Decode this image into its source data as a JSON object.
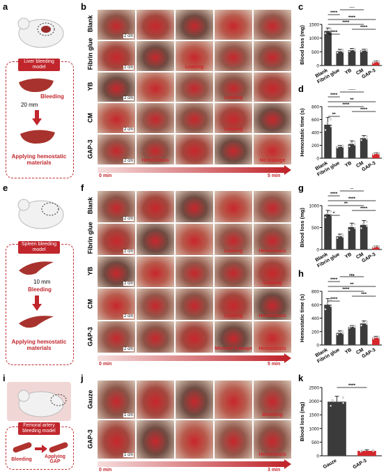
{
  "panels": {
    "a": "a",
    "b": "b",
    "c": "c",
    "d": "d",
    "e": "e",
    "f": "f",
    "g": "g",
    "h": "h",
    "i": "i",
    "j": "j",
    "k": "k"
  },
  "schematics": {
    "a": {
      "title": "Liver bleeding model",
      "scale": "20 mm",
      "bleeding": "Bleeding",
      "bottom": "Applying hemostatic materials"
    },
    "e": {
      "title": "Spleen bleeding model",
      "scale": "10 mm",
      "bleeding": "Bleeding",
      "bottom": "Applying hemostatic materials"
    },
    "i": {
      "title": "Femoral artery bleeding model",
      "bleeding": "Bleeding",
      "applying": "Applying GAP"
    }
  },
  "grid_b": {
    "rows": [
      "Blank",
      "Fibrin glue",
      "YB",
      "CM",
      "GAP-3"
    ],
    "scale": "2 cm",
    "annotations": {
      "1_2": "Leaking",
      "2_3": "Leaking",
      "3_3": "Leaking",
      "4_1": "Hemostasis",
      "4_4": "No leakage"
    },
    "time_start": "0 min",
    "time_end": "5 min"
  },
  "grid_f": {
    "rows": [
      "Blank",
      "Fibrin glue",
      "YB",
      "CM",
      "GAP-3"
    ],
    "scale": "2 cm",
    "annotations": {
      "1_3": "Leaking",
      "1_4": "Hemostasis",
      "2_4": "Leaking",
      "3_3": "Leaking",
      "3_4": "Hemostasis",
      "4_3": "Minimal leakage",
      "4_4": "Hemostasis"
    },
    "time_start": "0 min",
    "time_end": "5 min"
  },
  "grid_j": {
    "rows": [
      "Gauze",
      "GAP-3"
    ],
    "scale": "1 cm",
    "annotations": {
      "0_4": "Bleeding",
      "1_4": "Hemostasis"
    },
    "time_start": "0 min",
    "time_end": "3 min"
  },
  "colors": {
    "dark_bar": "#3b3b3b",
    "red_bar": "#d5262c",
    "accent": "#c0262c"
  },
  "chart_data": [
    {
      "id": "c",
      "type": "bar",
      "ylabel": "Blood loss (mg)",
      "ylim": [
        0,
        1500
      ],
      "yticks": [
        0,
        500,
        1000,
        1500
      ],
      "categories": [
        "Blank",
        "Fibrin glue",
        "YB",
        "CM",
        "GAP-3"
      ],
      "values": [
        1260,
        520,
        560,
        550,
        130
      ],
      "errors": [
        110,
        70,
        60,
        50,
        40
      ],
      "significance": [
        "****",
        "****",
        "****",
        "****",
        "****",
        "***"
      ]
    },
    {
      "id": "d",
      "type": "bar",
      "ylabel": "Hemostatic time (s)",
      "ylim": [
        0,
        800
      ],
      "yticks": [
        0,
        200,
        400,
        600,
        800
      ],
      "categories": [
        "Blank",
        "Fibrin glue",
        "YB",
        "CM",
        "GAP-3"
      ],
      "values": [
        520,
        180,
        220,
        310,
        70
      ],
      "errors": [
        110,
        20,
        50,
        40,
        15
      ],
      "significance": [
        "**",
        "****",
        "****",
        "**",
        "****",
        "****",
        "*"
      ]
    },
    {
      "id": "g",
      "type": "bar",
      "ylabel": "Blood loss (mg)",
      "ylim": [
        0,
        1000
      ],
      "yticks": [
        0,
        500,
        1000
      ],
      "categories": [
        "Blank",
        "Fibrin glue",
        "YB",
        "CM",
        "GAP-3"
      ],
      "values": [
        800,
        300,
        510,
        560,
        60
      ],
      "errors": [
        90,
        50,
        90,
        100,
        20
      ],
      "significance": [
        "*",
        "****",
        "**",
        "****",
        "****",
        "**"
      ]
    },
    {
      "id": "h",
      "type": "bar",
      "ylabel": "Hemostatic time (s)",
      "ylim": [
        0,
        800
      ],
      "yticks": [
        0,
        200,
        400,
        600,
        800
      ],
      "categories": [
        "Blank",
        "Fibrin glue",
        "YB",
        "CM",
        "GAP-3"
      ],
      "values": [
        600,
        180,
        270,
        320,
        110
      ],
      "errors": [
        90,
        30,
        20,
        40,
        20
      ],
      "significance": [
        "****",
        "***",
        "****",
        "**",
        "****",
        "ns"
      ]
    },
    {
      "id": "k",
      "type": "bar",
      "ylabel": "Blood loss (mg)",
      "ylim": [
        0,
        2500
      ],
      "yticks": [
        0,
        500,
        1000,
        1500,
        2000,
        2500
      ],
      "categories": [
        "Gauze",
        "GAP-3"
      ],
      "values": [
        1980,
        180
      ],
      "errors": [
        200,
        40
      ],
      "significance": [
        "****"
      ]
    }
  ]
}
